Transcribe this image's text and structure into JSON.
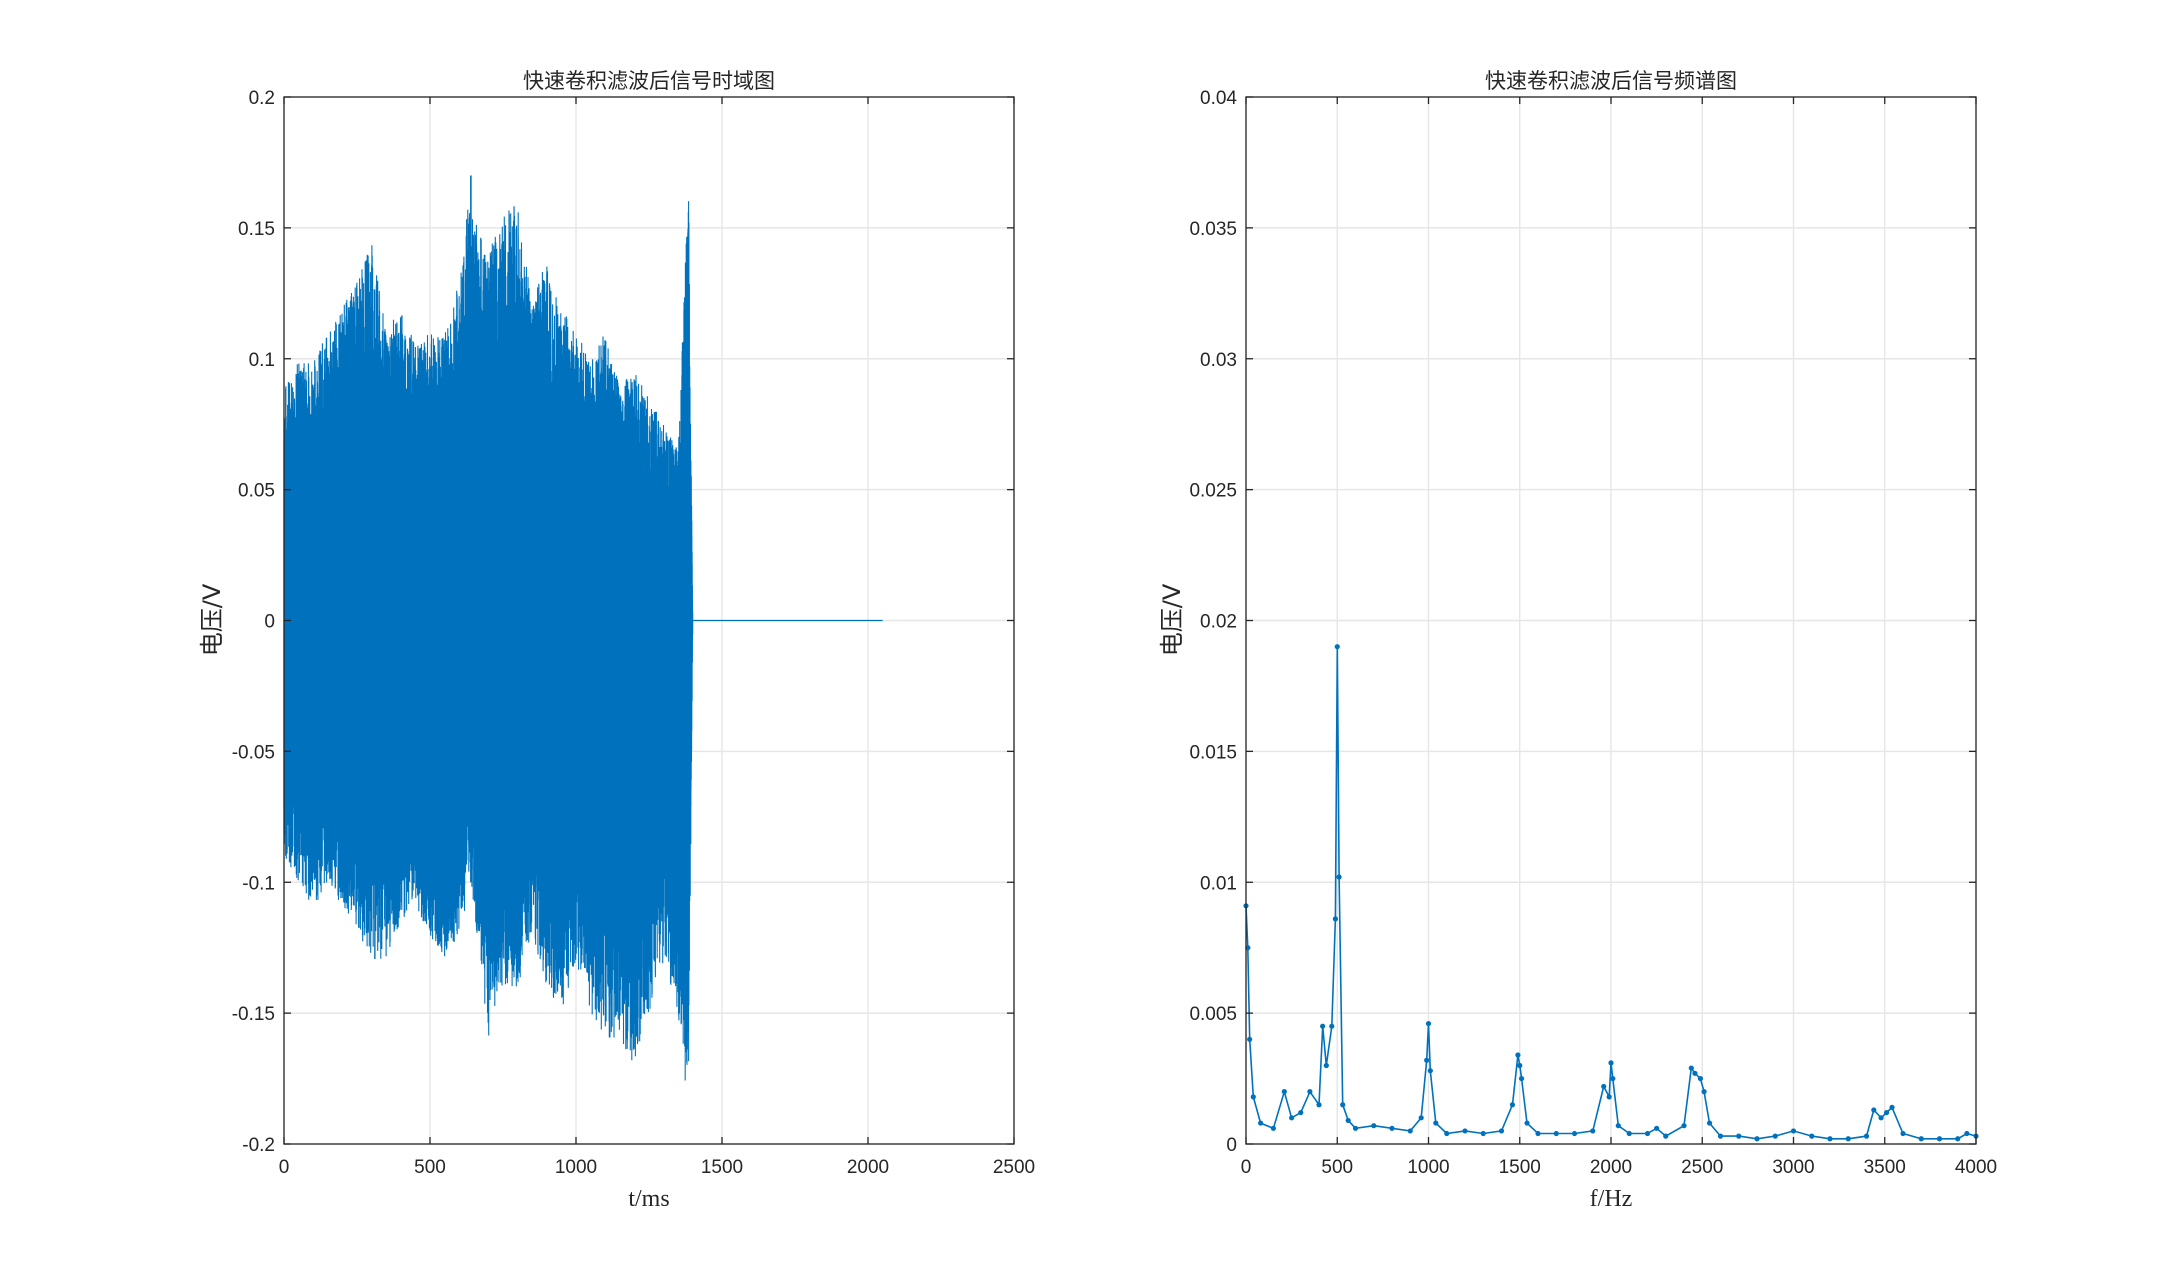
{
  "chart_data": [
    {
      "type": "line",
      "title": "快速卷积滤波后信号时域图",
      "xlabel": "t/ms",
      "ylabel": "电压/V",
      "xlim": [
        0,
        2500
      ],
      "ylim": [
        -0.2,
        0.2
      ],
      "xticks": [
        "0",
        "500",
        "1000",
        "1500",
        "2000",
        "2500"
      ],
      "yticks": [
        "0.2",
        "0.15",
        "0.1",
        "0.05",
        "0",
        "-0.05",
        "-0.1",
        "-0.15",
        "-0.2"
      ],
      "grid": true,
      "color": "#0072BD",
      "series": [
        {
          "x": [
            0,
            50,
            100,
            150,
            200,
            250,
            300,
            350,
            400,
            450,
            500,
            550,
            600,
            640,
            650,
            700,
            750,
            800,
            850,
            900,
            950,
            1000,
            1050,
            1100,
            1150,
            1200,
            1250,
            1300,
            1350,
            1385,
            1400,
            1450,
            1500,
            1600,
            1700,
            1800,
            1900,
            2000,
            2050
          ],
          "upper": [
            0.09,
            0.1,
            0.1,
            0.11,
            0.12,
            0.13,
            0.145,
            0.11,
            0.12,
            0.105,
            0.11,
            0.11,
            0.13,
            0.17,
            0.155,
            0.14,
            0.155,
            0.16,
            0.12,
            0.14,
            0.12,
            0.11,
            0.1,
            0.11,
            0.09,
            0.095,
            0.085,
            0.075,
            0.065,
            0.17,
            0,
            0,
            0,
            0,
            0,
            0,
            0,
            0,
            0
          ],
          "lower": [
            -0.09,
            -0.1,
            -0.11,
            -0.1,
            -0.11,
            -0.12,
            -0.13,
            -0.13,
            -0.115,
            -0.11,
            -0.12,
            -0.13,
            -0.12,
            -0.1,
            -0.11,
            -0.16,
            -0.14,
            -0.14,
            -0.12,
            -0.14,
            -0.15,
            -0.13,
            -0.15,
            -0.16,
            -0.16,
            -0.17,
            -0.15,
            -0.13,
            -0.15,
            -0.19,
            0,
            0,
            0,
            0,
            0,
            0,
            0,
            0,
            0
          ]
        }
      ]
    },
    {
      "type": "line",
      "title": "快速卷积滤波后信号频谱图",
      "xlabel": "f/Hz",
      "ylabel": "电压/V",
      "xlim": [
        0,
        4000
      ],
      "ylim": [
        0,
        0.04
      ],
      "xticks": [
        "0",
        "500",
        "1000",
        "1500",
        "2000",
        "2500",
        "3000",
        "3500",
        "4000"
      ],
      "yticks": [
        "0.04",
        "0.035",
        "0.03",
        "0.025",
        "0.02",
        "0.015",
        "0.01",
        "0.005",
        "0"
      ],
      "grid": true,
      "color": "#0072BD",
      "marker": "point",
      "series": [
        {
          "x": [
            0,
            10,
            20,
            40,
            80,
            150,
            210,
            250,
            300,
            350,
            400,
            420,
            440,
            470,
            490,
            500,
            510,
            530,
            560,
            600,
            700,
            800,
            900,
            960,
            990,
            1000,
            1010,
            1040,
            1100,
            1200,
            1300,
            1400,
            1460,
            1490,
            1500,
            1510,
            1540,
            1600,
            1700,
            1800,
            1900,
            1960,
            1990,
            2000,
            2010,
            2040,
            2100,
            2200,
            2250,
            2300,
            2400,
            2440,
            2460,
            2490,
            2510,
            2540,
            2600,
            2700,
            2800,
            2900,
            3000,
            3100,
            3200,
            3300,
            3400,
            3440,
            3480,
            3510,
            3540,
            3600,
            3700,
            3800,
            3900,
            3950,
            4000
          ],
          "y": [
            0.0091,
            0.0075,
            0.004,
            0.0018,
            0.0008,
            0.0006,
            0.002,
            0.001,
            0.0012,
            0.002,
            0.0015,
            0.0045,
            0.003,
            0.0045,
            0.0086,
            0.019,
            0.0102,
            0.0015,
            0.0009,
            0.0006,
            0.0007,
            0.0006,
            0.0005,
            0.001,
            0.0032,
            0.0046,
            0.0028,
            0.0008,
            0.0004,
            0.0005,
            0.0004,
            0.0005,
            0.0015,
            0.0034,
            0.003,
            0.0025,
            0.0008,
            0.0004,
            0.0004,
            0.0004,
            0.0005,
            0.0022,
            0.0018,
            0.0031,
            0.0025,
            0.0007,
            0.0004,
            0.0004,
            0.0006,
            0.0003,
            0.0007,
            0.0029,
            0.0027,
            0.0025,
            0.002,
            0.0008,
            0.0003,
            0.0003,
            0.0002,
            0.0003,
            0.0005,
            0.0003,
            0.0002,
            0.0002,
            0.0003,
            0.0013,
            0.001,
            0.0012,
            0.0014,
            0.0004,
            0.0002,
            0.0002,
            0.0002,
            0.0004,
            0.0003
          ]
        }
      ]
    }
  ]
}
